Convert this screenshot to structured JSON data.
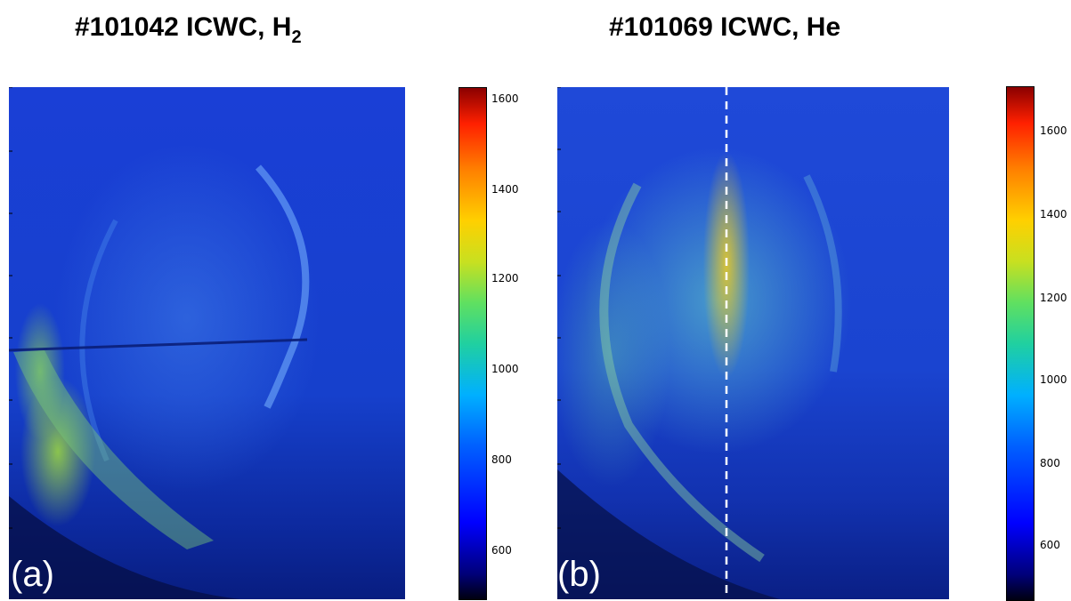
{
  "panel_a": {
    "title_main": "#101042 ICWC, H",
    "title_sub": "2",
    "label": "(a)",
    "colorbar_ticks": [
      "1600",
      "1400",
      "1200",
      "1000",
      "800",
      "600"
    ]
  },
  "panel_b": {
    "title_main": "#101069 ICWC, He",
    "label": "(b)",
    "colorbar_ticks": [
      "1600",
      "1400",
      "1200",
      "1000",
      "800",
      "600"
    ]
  },
  "colors": {
    "background": "#1a40d0",
    "dashed_line": "#ffffff"
  }
}
